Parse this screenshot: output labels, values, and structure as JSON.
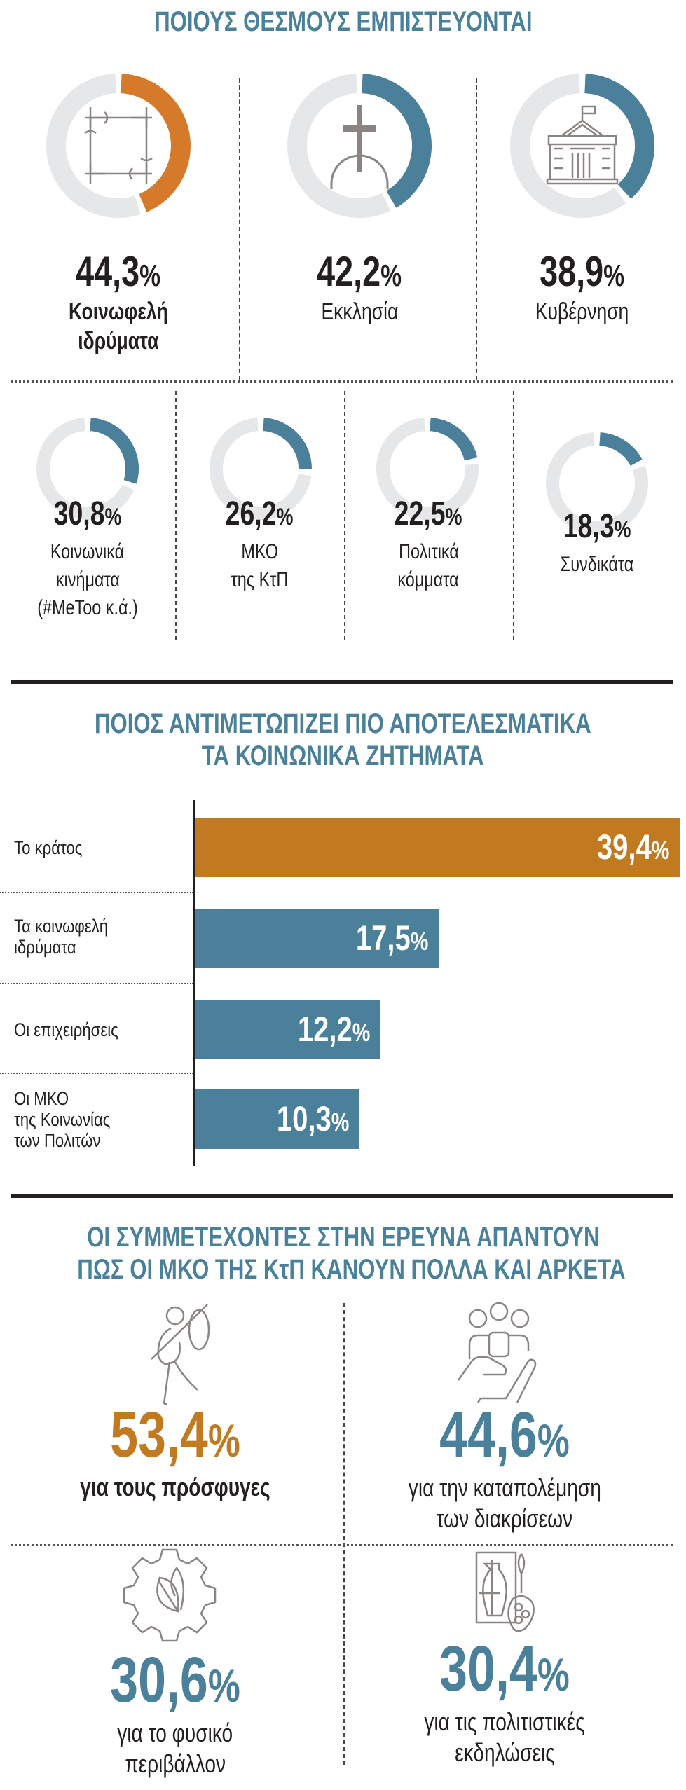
{
  "colors": {
    "teal": "#4a8099",
    "orange": "#d57a2a",
    "bar_orange": "#c27a21",
    "track": "#e6e7e9",
    "icon": "#8a8583",
    "text": "#231f20"
  },
  "trust": {
    "title": "ΠΟΙΟΥΣ ΘΕΣΜΟΥΣ ΕΜΠΙΣΤΕΥΟΝΤΑΙ",
    "items": [
      {
        "value": 44.3,
        "pct": "44,3",
        "label": [
          "Κοινωφελή",
          "ιδρύματα"
        ],
        "icon": "hands-circle-icon",
        "color": "orange"
      },
      {
        "value": 42.2,
        "pct": "42,2",
        "label": [
          "Εκκλησία"
        ],
        "icon": "cross-icon",
        "color": "teal"
      },
      {
        "value": 38.9,
        "pct": "38,9",
        "label": [
          "Κυβέρνηση"
        ],
        "icon": "government-building-icon",
        "color": "teal"
      },
      {
        "value": 30.8,
        "pct": "30,8",
        "label": [
          "Κοινωνικά",
          "κινήματα",
          "(#MeToo κ.ά.)"
        ],
        "color": "teal"
      },
      {
        "value": 26.2,
        "pct": "26,2",
        "label": [
          "ΜΚΟ",
          "της ΚτΠ"
        ],
        "color": "teal"
      },
      {
        "value": 22.5,
        "pct": "22,5",
        "label": [
          "Πολιτικά",
          "κόμματα"
        ],
        "color": "teal"
      },
      {
        "value": 18.3,
        "pct": "18,3",
        "label": [
          "Συνδικάτα"
        ],
        "color": "teal"
      }
    ],
    "percent_sign": "%"
  },
  "chart_data": {
    "type": "bar",
    "orientation": "horizontal",
    "title": "ΠΟΙΟΣ ΑΝΤΙΜΕΤΩΠΙΖΕΙ ΠΙΟ ΑΠΟΤΕΛΕΣΜΑΤΙΚΑ ΤΑ ΚΟΙΝΩΝΙΚΑ ΖΗΤΗΜΑΤΑ",
    "title_lines": [
      "ΠΟΙΟΣ ΑΝΤΙΜΕΤΩΠΙΖΕΙ ΠΙΟ ΑΠΟΤΕΛΕΣΜΑΤΙΚΑ",
      "ΤΑ ΚΟΙΝΩΝΙΚΑ ΖΗΤΗΜΑΤΑ"
    ],
    "categories": [
      [
        "Το κράτος"
      ],
      [
        "Τα κοινωφελή",
        "ιδρύματα"
      ],
      [
        "Οι επιχειρήσεις"
      ],
      [
        "Οι ΜΚΟ",
        "της Κοινωνίας",
        "των Πολιτών"
      ]
    ],
    "values": [
      39.4,
      17.5,
      12.2,
      10.3
    ],
    "data_labels": [
      "39,4",
      "17,5",
      "12,2",
      "10,3"
    ],
    "unit": "%",
    "bar_colors": [
      "bar_orange",
      "teal",
      "teal",
      "teal"
    ]
  },
  "ngo": {
    "title_lines": [
      "ΟΙ ΣΥΜΜΕΤΕΧΟΝΤΕΣ ΣΤΗΝ ΕΡΕΥΝΑ ΑΠΑΝΤΟΥΝ",
      "ΠΩΣ ΟΙ ΜΚΟ ΤΗΣ ΚτΠ ΚΑΝΟΥΝ ΠΟΛΛΑ ΚΑΙ ΑΡΚΕΤΑ"
    ],
    "items": [
      {
        "pct": "53,4",
        "label": [
          "για τους πρόσφυγες"
        ],
        "icon": "refugee-icon",
        "color": "bar_orange"
      },
      {
        "pct": "44,6",
        "label": [
          "για την καταπολέμηση",
          "των διακρίσεων"
        ],
        "icon": "people-in-hand-icon",
        "color": "teal"
      },
      {
        "pct": "30,6",
        "label": [
          "για το φυσικό",
          "περιβάλλον"
        ],
        "icon": "gear-leaf-icon",
        "color": "teal"
      },
      {
        "pct": "30,4",
        "label": [
          "για τις πολιτιστικές",
          "εκδηλώσεις"
        ],
        "icon": "art-palette-icon",
        "color": "teal"
      }
    ]
  }
}
